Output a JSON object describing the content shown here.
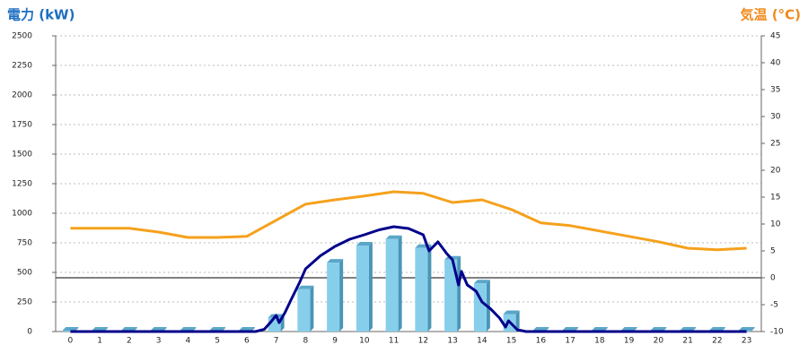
{
  "chart_data": {
    "type": "bar",
    "title": "電力 (kW)",
    "title_right": "気温 (°C)",
    "categories": [
      "0",
      "1",
      "2",
      "3",
      "4",
      "5",
      "6",
      "7",
      "8",
      "9",
      "10",
      "11",
      "12",
      "13",
      "14",
      "15",
      "16",
      "17",
      "18",
      "19",
      "20",
      "21",
      "22",
      "23"
    ],
    "series": [
      {
        "type": "bar",
        "color": "#87ceeb",
        "values": [
          0,
          0,
          0,
          0,
          0,
          0,
          0,
          110,
          350,
          575,
          720,
          775,
          700,
          600,
          400,
          140,
          0,
          0,
          0,
          0,
          0,
          0,
          0,
          0
        ]
      },
      {
        "type": "line",
        "axis": "y2",
        "color": "#f5a11c",
        "values": [
          9.2,
          9.2,
          9.2,
          8.5,
          7.5,
          7.5,
          7.7,
          10.7,
          13.7,
          14.5,
          15.2,
          16,
          15.7,
          14,
          14.5,
          12.7,
          10.2,
          9.7,
          8.7,
          7.7,
          6.7,
          5.5,
          5.2,
          5.5
        ]
      },
      {
        "type": "line",
        "color": "#00008b",
        "x": [
          0,
          6.3,
          6.6,
          6.8,
          7,
          7.1,
          7.3,
          7.5,
          7.8,
          8,
          8.5,
          9,
          9.5,
          10,
          10.5,
          11,
          11.5,
          12,
          12.2,
          12.5,
          12.8,
          13,
          13.2,
          13.3,
          13.5,
          13.8,
          14,
          14.3,
          14.6,
          14.8,
          14.9,
          15.2,
          15.5,
          23
        ],
        "values": [
          0,
          0,
          20,
          76,
          136,
          76,
          160,
          265,
          417,
          530,
          640,
          720,
          780,
          818,
          860,
          886,
          871,
          818,
          682,
          758,
          659,
          606,
          394,
          508,
          394,
          341,
          250,
          190,
          114,
          38,
          91,
          15,
          0,
          0
        ]
      }
    ],
    "ylim": [
      0,
      2500
    ],
    "yticks": [
      0,
      250,
      500,
      750,
      1000,
      1250,
      1500,
      1750,
      2000,
      2250,
      2500
    ],
    "y2lim": [
      -10,
      45
    ],
    "y2ticks": [
      -10,
      -5,
      0,
      5,
      10,
      15,
      20,
      25,
      30,
      35,
      40,
      45
    ],
    "grid": true
  }
}
